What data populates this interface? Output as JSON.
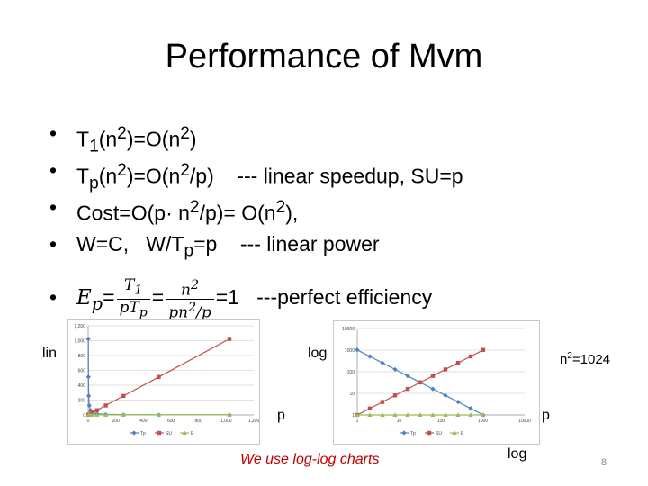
{
  "slide": {
    "title": "Performance of Mvm",
    "bullets": [
      {
        "pre": "T",
        "sub": "1",
        "mid1": "(n",
        "sup1": "2",
        "mid2": ")=O(n",
        "sup2": "2",
        "post": ")"
      },
      {
        "pre": "T",
        "sub": "p",
        "mid1": "(n",
        "sup1": "2",
        "mid2": ")=O(n",
        "sup2": "2",
        "post": "/p)    --- linear speedup, SU=p"
      },
      {
        "pre": "Cost=O(p· n",
        "sup1": "2",
        "mid2": "/p)= O(n",
        "sup2": "2",
        "post": "),"
      },
      {
        "pre": "W=C,   W/T",
        "sub": "p",
        "post": "=p    --- linear power"
      }
    ],
    "efficiency": {
      "lhs": "E",
      "lhs_sub": "p",
      "eq": "=",
      "f1_num": "T",
      "f1_num_sub": "1",
      "f1_den": "pT",
      "f1_den_sub": "p",
      "f2_num": "n",
      "f2_num_sup": "2",
      "f2_den": "pn",
      "f2_den_sup": "2",
      "f2_den_tail": "/p",
      "rhs": "=1",
      "tail": "   ---perfect efficiency"
    },
    "labels": {
      "lin": "lin",
      "log": "log",
      "n2": "n",
      "n2_sup": "2",
      "n2_val": "=1024",
      "p_left": "p",
      "p_right": "p",
      "log_bottom": "log"
    },
    "note": "We use log-log charts",
    "page_number": "8"
  },
  "chart_data": [
    {
      "type": "line",
      "scale": "linear",
      "x": [
        1,
        2,
        4,
        8,
        16,
        32,
        64,
        128,
        256,
        512,
        1024
      ],
      "xticks": [
        "0",
        "200",
        "400",
        "600",
        "800",
        "1,000",
        "1,200"
      ],
      "yticks": [
        "0",
        "200",
        "400",
        "600",
        "800",
        "1,000",
        "1,200"
      ],
      "xlim": [
        0,
        1200
      ],
      "ylim": [
        0,
        1200
      ],
      "grid": true,
      "legend": "bottom",
      "series": [
        {
          "name": "Tp",
          "color": "#4f81bd",
          "marker": "diamond",
          "values": [
            1024,
            512,
            256,
            128,
            64,
            32,
            16,
            8,
            4,
            2,
            1
          ]
        },
        {
          "name": "SU",
          "color": "#c0504d",
          "marker": "square",
          "values": [
            1,
            2,
            4,
            8,
            16,
            32,
            64,
            128,
            256,
            512,
            1024
          ]
        },
        {
          "name": "E",
          "color": "#9bbb59",
          "marker": "triangle",
          "values": [
            1,
            1,
            1,
            1,
            1,
            1,
            1,
            1,
            1,
            1,
            1
          ]
        }
      ]
    },
    {
      "type": "line",
      "scale": "log",
      "x": [
        1,
        2,
        4,
        8,
        16,
        32,
        64,
        128,
        256,
        512,
        1024
      ],
      "xticks": [
        "1",
        "10",
        "100",
        "1000",
        "10000"
      ],
      "yticks": [
        "1",
        "10",
        "100",
        "1000",
        "10000"
      ],
      "xlim": [
        1,
        10000
      ],
      "ylim": [
        1,
        10000
      ],
      "grid": true,
      "legend": "bottom",
      "series": [
        {
          "name": "Tp",
          "color": "#4f81bd",
          "marker": "diamond",
          "values": [
            1024,
            512,
            256,
            128,
            64,
            32,
            16,
            8,
            4,
            2,
            1
          ]
        },
        {
          "name": "SU",
          "color": "#c0504d",
          "marker": "square",
          "values": [
            1,
            2,
            4,
            8,
            16,
            32,
            64,
            128,
            256,
            512,
            1024
          ]
        },
        {
          "name": "E",
          "color": "#9bbb59",
          "marker": "triangle",
          "values": [
            1,
            1,
            1,
            1,
            1,
            1,
            1,
            1,
            1,
            1,
            1
          ]
        }
      ]
    }
  ]
}
